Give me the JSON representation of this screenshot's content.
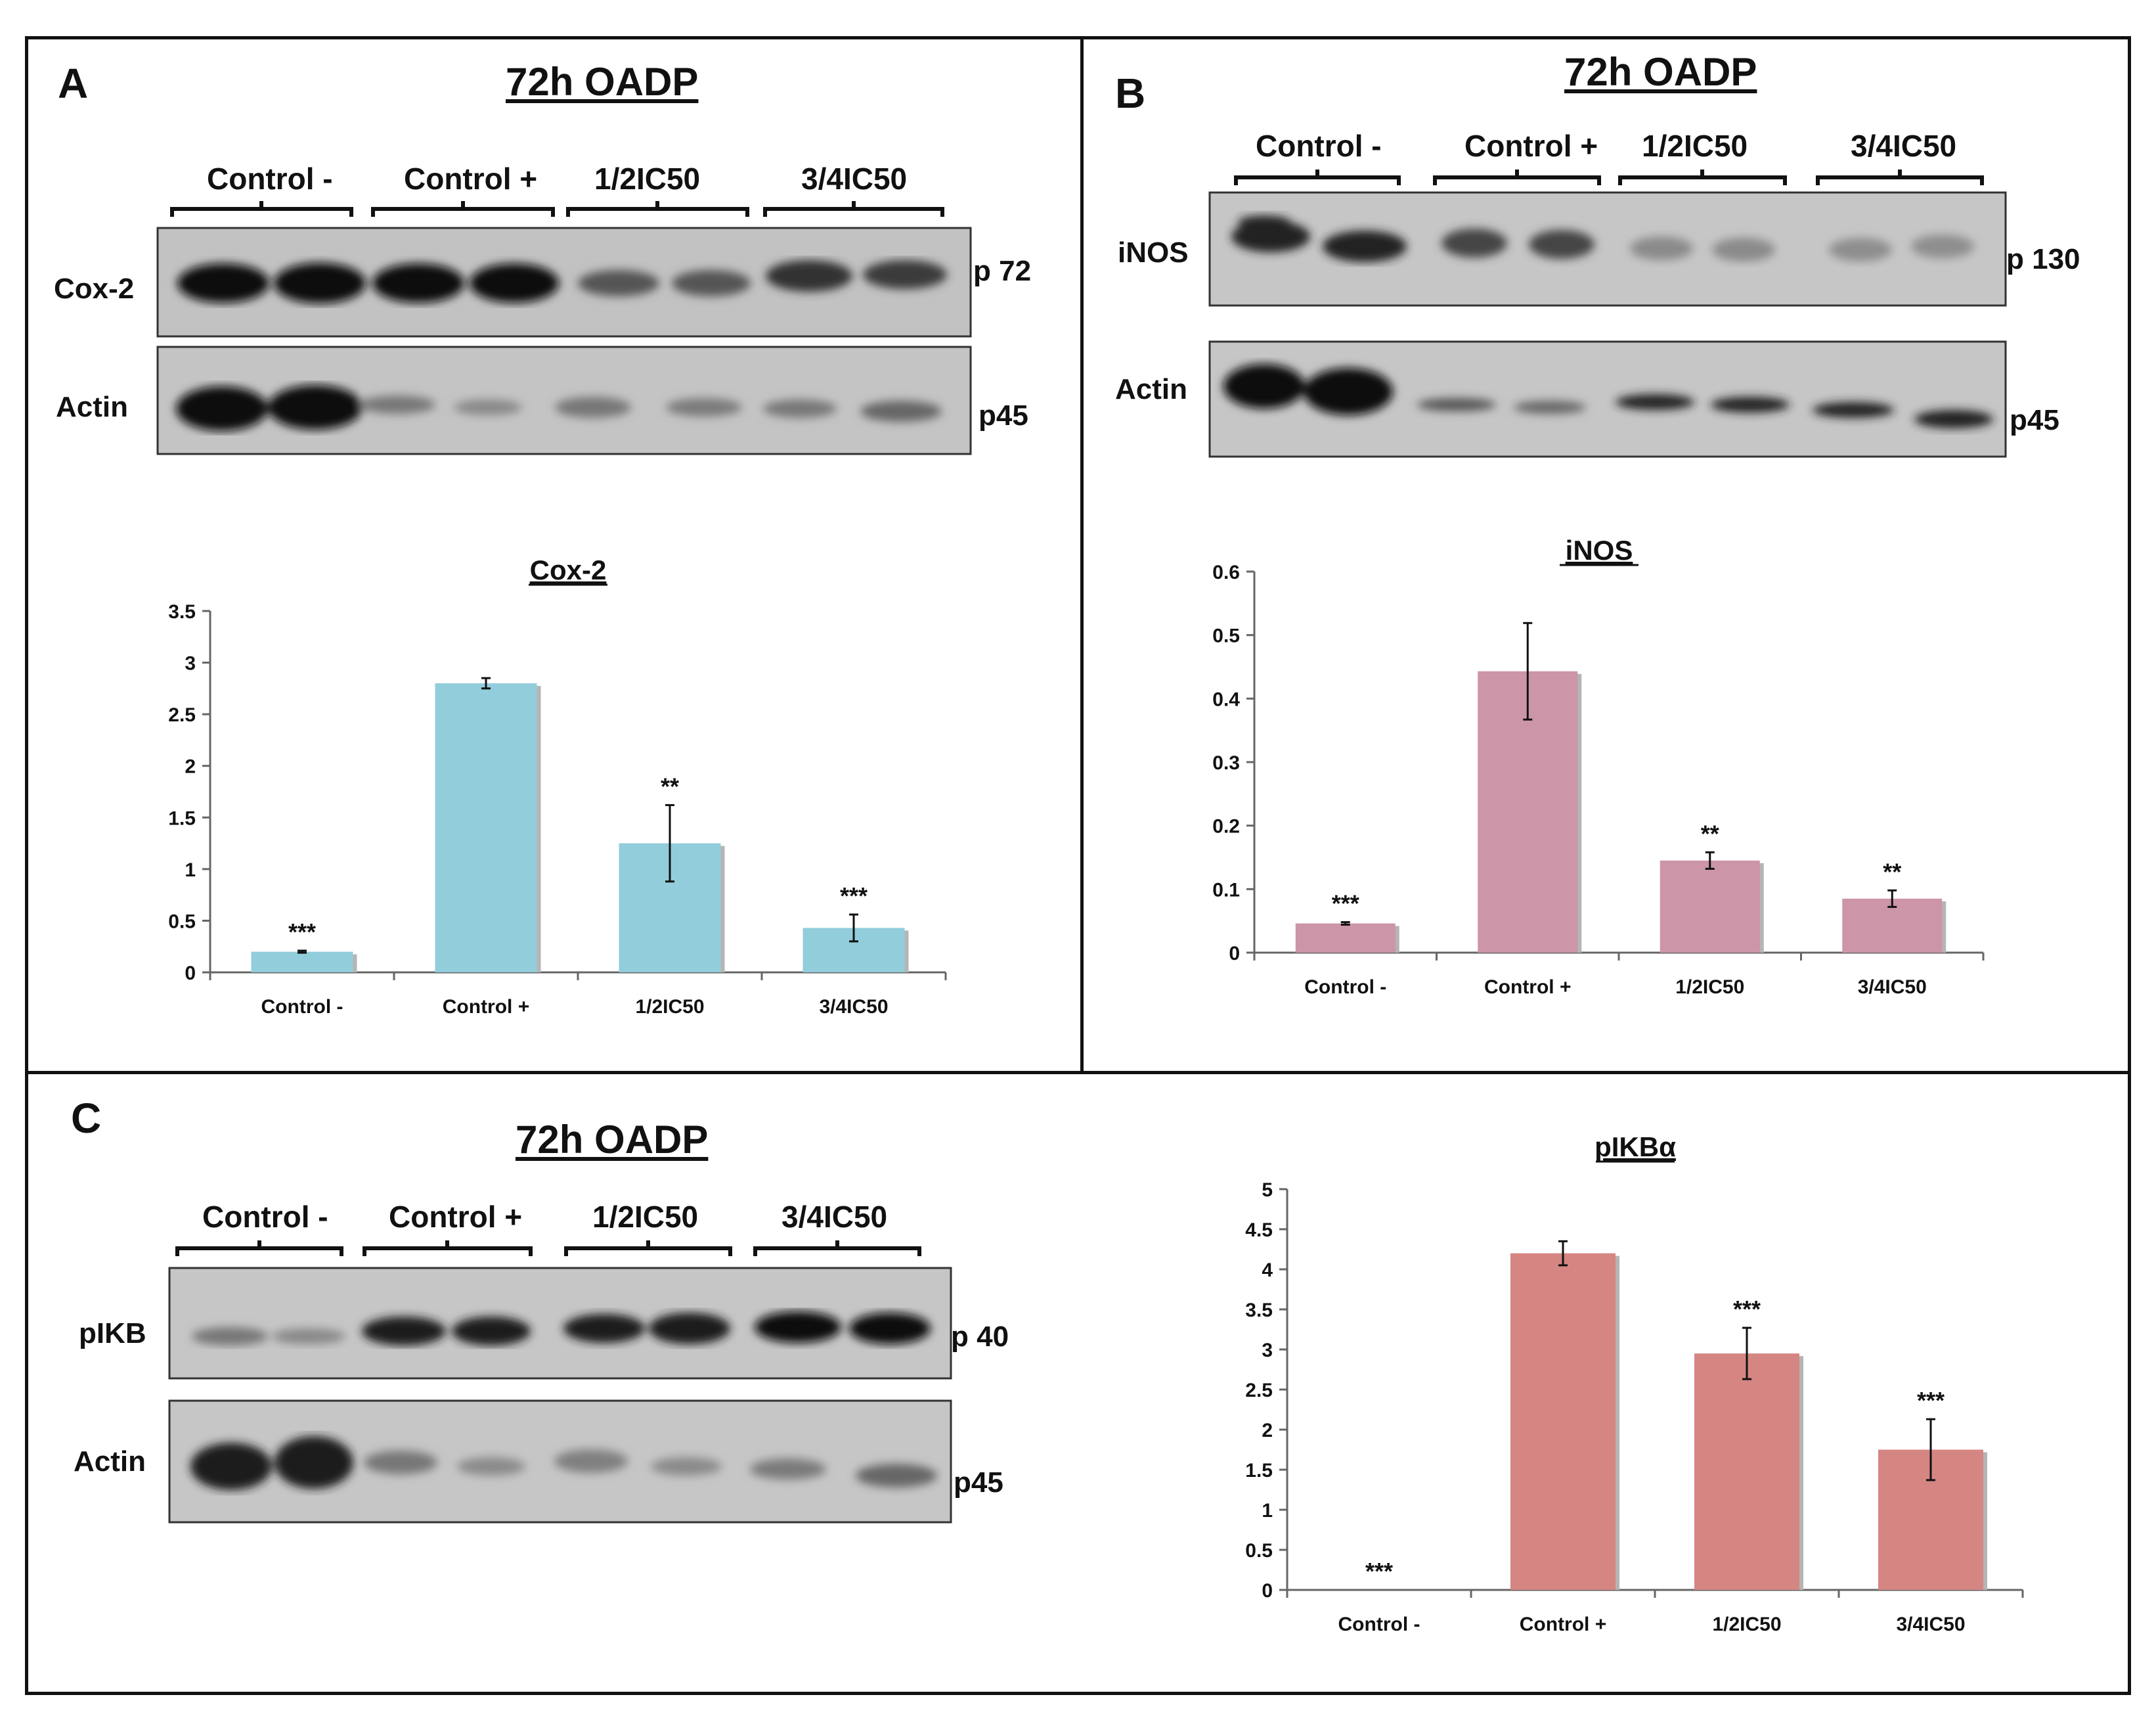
{
  "panels": {
    "a": {
      "letter": "A",
      "title": "72h OADP",
      "lanes": [
        "Control -",
        "Control +",
        "1/2IC50",
        "3/4IC50"
      ],
      "blots": [
        {
          "label": "Cox-2",
          "marker": "p 72"
        },
        {
          "label": "Actin",
          "marker": "p45"
        }
      ]
    },
    "b": {
      "letter": "B",
      "title": "72h OADP",
      "lanes": [
        "Control -",
        "Control +",
        "1/2IC50",
        "3/4IC50"
      ],
      "blots": [
        {
          "label": "iNOS",
          "marker": "p 130"
        },
        {
          "label": "Actin",
          "marker": "p45"
        }
      ]
    },
    "c": {
      "letter": "C",
      "title": "72h OADP",
      "lanes": [
        "Control -",
        "Control +",
        "1/2IC50",
        "3/4IC50"
      ],
      "blots": [
        {
          "label": "pIKB",
          "marker": "p 40"
        },
        {
          "label": "Actin",
          "marker": "p45"
        }
      ]
    }
  },
  "chart_data": [
    {
      "id": "cox2",
      "type": "bar",
      "title": "Cox-2",
      "categories": [
        "Control -",
        "Control +",
        "1/2IC50",
        "3/4IC50"
      ],
      "values": [
        0.2,
        2.8,
        1.25,
        0.43
      ],
      "errors": [
        0.01,
        0.05,
        0.37,
        0.13
      ],
      "significance": [
        "***",
        "",
        "**",
        "***"
      ],
      "ylim": [
        0,
        3.5
      ],
      "yticks": [
        "0",
        "0.5",
        "1",
        "1.5",
        "2",
        "2.5",
        "3",
        "3.5"
      ],
      "color": "#92cddc"
    },
    {
      "id": "inos",
      "type": "bar",
      "title": "iNOS",
      "categories": [
        "Control -",
        "Control +",
        "1/2IC50",
        "3/4IC50"
      ],
      "values": [
        0.046,
        0.443,
        0.145,
        0.085
      ],
      "errors": [
        0.002,
        0.076,
        0.013,
        0.013
      ],
      "significance": [
        "***",
        "",
        "**",
        "**"
      ],
      "ylim": [
        0,
        0.6
      ],
      "yticks": [
        "0",
        "0.1",
        "0.2",
        "0.3",
        "0.4",
        "0.5",
        "0.6"
      ],
      "color": "#cc95a8"
    },
    {
      "id": "pikb",
      "type": "bar",
      "title": "pIKBα",
      "categories": [
        "Control -",
        "Control +",
        "1/2IC50",
        "3/4IC50"
      ],
      "values": [
        0,
        4.2,
        2.95,
        1.75
      ],
      "errors": [
        0,
        0.15,
        0.32,
        0.38
      ],
      "significance": [
        "***",
        "",
        "***",
        "***"
      ],
      "ylim": [
        0,
        5
      ],
      "yticks": [
        "0",
        "0.5",
        "1",
        "1.5",
        "2",
        "2.5",
        "3",
        "3.5",
        "4",
        "4.5",
        "5"
      ],
      "color": "#d58683"
    }
  ]
}
